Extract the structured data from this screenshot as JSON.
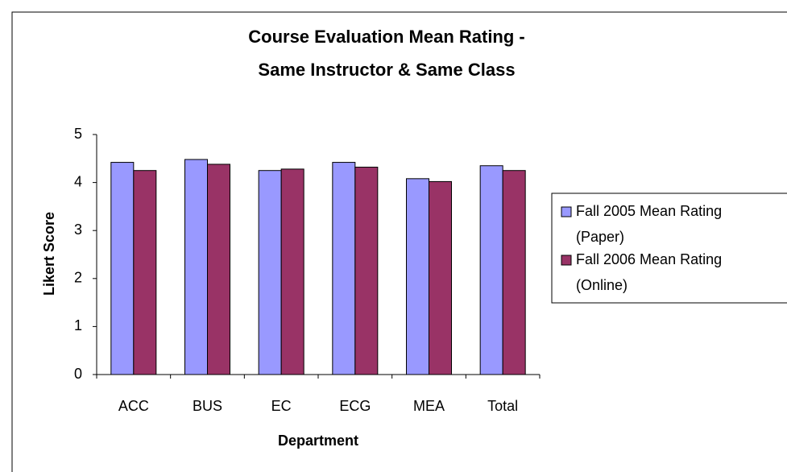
{
  "chart_data": {
    "type": "bar",
    "title": [
      "Course Evaluation Mean Rating -",
      "Same Instructor & Same Class"
    ],
    "x_label": "Department",
    "y_label": "Likert Score",
    "categories": [
      "ACC",
      "BUS",
      "EC",
      "ECG",
      "MEA",
      "Total"
    ],
    "series": [
      {
        "name": [
          "Fall 2005 Mean Rating",
          "(Paper)"
        ],
        "color": "#9999ff",
        "values": [
          4.42,
          4.48,
          4.25,
          4.42,
          4.08,
          4.35
        ]
      },
      {
        "name": [
          "Fall 2006 Mean Rating",
          "(Online)"
        ],
        "color": "#993366",
        "values": [
          4.25,
          4.38,
          4.28,
          4.32,
          4.02,
          4.25
        ]
      }
    ],
    "ylim": [
      0,
      5
    ],
    "yticks": [
      0,
      1,
      2,
      3,
      4,
      5
    ],
    "grid": false,
    "legend": "right"
  }
}
